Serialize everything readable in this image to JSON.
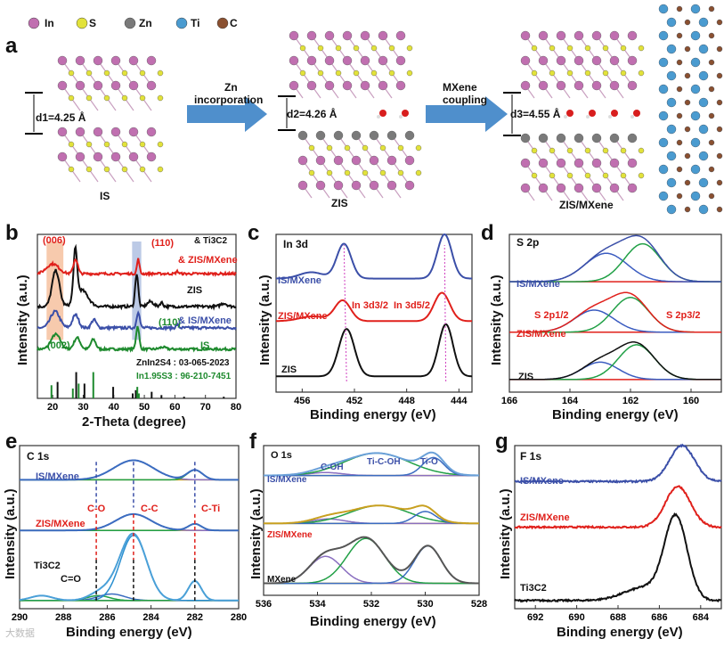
{
  "panel_letters": [
    "a",
    "b",
    "c",
    "d",
    "e",
    "f",
    "g"
  ],
  "diagram": {
    "legend": [
      "In",
      "S",
      "Zn",
      "Ti",
      "C"
    ],
    "legend_colors": [
      "#c06fb0",
      "#e2e23a",
      "#7a7a7a",
      "#4a9bd0",
      "#8a5030"
    ],
    "structures": [
      "IS",
      "ZIS",
      "ZIS/MXene"
    ],
    "arrow1_label": [
      "Zn",
      "incorporation"
    ],
    "arrow2_label": [
      "MXene",
      "coupling"
    ],
    "d1": "d1=4.25 Å",
    "d2": "d2=4.26 Å",
    "d3": "d3=4.55 Å"
  },
  "watermark": "大数据",
  "chart_data": [
    {
      "panel": "b",
      "type": "line",
      "xlabel": "2-Theta (degree)",
      "ylabel": "Intensity (a.u.)",
      "xlim": [
        15,
        80
      ],
      "ylim": [
        0,
        100
      ],
      "xticks": [
        20,
        30,
        40,
        50,
        60,
        70,
        80
      ],
      "shaded_ranges": [
        {
          "range": [
            18,
            23.5
          ],
          "color": "#f4b48a"
        },
        {
          "range": [
            46,
            49
          ],
          "color": "#9fb4dc"
        }
      ],
      "series": [
        {
          "name": "IS",
          "color": "#1e8a2e",
          "baseline": 30,
          "noise": 0.7,
          "peaks": [
            [
              21,
              9,
              1.5
            ],
            [
              28,
              7,
              1
            ],
            [
              33.3,
              6,
              0.8
            ],
            [
              47.8,
              14,
              0.5
            ],
            [
              56,
              1.2,
              1
            ]
          ]
        },
        {
          "name": "IS/MXene",
          "color": "#3b4fa8",
          "baseline": 43,
          "noise": 0.8,
          "peaks": [
            [
              20.8,
              10,
              1.5
            ],
            [
              27.5,
              8,
              1
            ],
            [
              33.5,
              5,
              0.8
            ],
            [
              48,
              10,
              0.5
            ],
            [
              60.8,
              2,
              0.4
            ]
          ]
        },
        {
          "name": "ZIS",
          "color": "#111111",
          "baseline": 56,
          "noise": 0.8,
          "peaks": [
            [
              21,
              22,
              1.2
            ],
            [
              27.4,
              30,
              0.6
            ],
            [
              29.5,
              10,
              2
            ],
            [
              47.5,
              20,
              0.5
            ],
            [
              52,
              3,
              1
            ],
            [
              55.6,
              2.5,
              0.5
            ],
            [
              76,
              2,
              1
            ]
          ]
        },
        {
          "name": "ZIS/MXene",
          "color": "#e0201b",
          "baseline": 76,
          "noise": 0.7,
          "peaks": [
            [
              20,
              6,
              2
            ],
            [
              27.5,
              9,
              0.7
            ],
            [
              48,
              9,
              0.4
            ],
            [
              60.8,
              1.5,
              0.4
            ]
          ]
        }
      ],
      "reference_bars": [
        {
          "name": "ZnIn2S4 : 03-065-2023",
          "color": "#111111",
          "positions": [
            21.6,
            27.7,
            30.4,
            39.8,
            46.2,
            47.2,
            52.4,
            55.6,
            63,
            76
          ],
          "heights": [
            10,
            16,
            9,
            7,
            3,
            5,
            4,
            2,
            1,
            1
          ]
        },
        {
          "name": "In1.95S3 : 96-210-7451",
          "color": "#1e8a2e",
          "positions": [
            19.6,
            26.6,
            28.5,
            33.3,
            47.7,
            48.2
          ],
          "heights": [
            8,
            6,
            9,
            16,
            7,
            3
          ]
        }
      ],
      "annotations": [
        "(006)",
        "(110)",
        "(110)",
        "(002)",
        "& Ti3C2",
        "& ZIS/MXene",
        "ZIS",
        "& IS/MXene",
        "IS"
      ]
    },
    {
      "panel": "c",
      "type": "line",
      "title": "In 3d",
      "xlabel": "Binding energy (eV)",
      "ylabel": "Intensity (a.u.)",
      "xlim": [
        458,
        443
      ],
      "ylim": [
        0,
        100
      ],
      "xticks": [
        456,
        452,
        448,
        444
      ],
      "series": [
        {
          "name": "ZIS",
          "color": "#111111",
          "baseline": 10,
          "peaks": [
            [
              452.6,
              30,
              0.6
            ],
            [
              445.0,
              33,
              0.55
            ]
          ]
        },
        {
          "name": "ZIS/MXene",
          "color": "#e0201b",
          "baseline": 45,
          "peaks": [
            [
              452.9,
              13,
              0.6
            ],
            [
              445.3,
              18,
              0.6
            ],
            [
              455.2,
              3,
              1.0
            ]
          ]
        },
        {
          "name": "IS/MXene",
          "color": "#3b4fa8",
          "baseline": 72,
          "peaks": [
            [
              452.8,
              22,
              0.55
            ],
            [
              445.1,
              28,
              0.55
            ],
            [
              455.3,
              4,
              0.9
            ]
          ]
        }
      ],
      "shift_lines": [
        [
          452.6,
          452.8
        ],
        [
          445.0,
          445.1
        ]
      ],
      "annotations": [
        "In 3d3/2",
        "In 3d5/2"
      ]
    },
    {
      "panel": "d",
      "type": "line",
      "title": "S 2p",
      "xlabel": "Binding energy (eV)",
      "ylabel": "Intensity (a.u.)",
      "xlim": [
        166,
        159
      ],
      "ylim": [
        0,
        100
      ],
      "xticks": [
        166,
        164,
        162,
        160
      ],
      "series": [
        {
          "name": "ZIS",
          "color": "#111111",
          "baseline": 8,
          "components": [
            [
              163.0,
              11,
              0.6
            ],
            [
              161.8,
              22,
              0.6
            ]
          ]
        },
        {
          "name": "ZIS/MXene",
          "color": "#e0201b",
          "baseline": 38,
          "components": [
            [
              163.2,
              14,
              0.65
            ],
            [
              162.0,
              22,
              0.6
            ]
          ]
        },
        {
          "name": "IS/MXene",
          "color": "#3b4fa8",
          "baseline": 70,
          "components": [
            [
              162.8,
              18,
              0.7
            ],
            [
              161.6,
              24,
              0.6
            ]
          ]
        }
      ],
      "component_colors": [
        "#3b5cc0",
        "#21a046"
      ],
      "annotations": [
        "S 2p1/2",
        "S 2p3/2"
      ]
    },
    {
      "panel": "e",
      "type": "line",
      "title": "C 1s",
      "xlabel": "Binding energy (eV)",
      "ylabel": "Intensity (a.u.)",
      "xlim": [
        290,
        280
      ],
      "ylim": [
        0,
        100
      ],
      "xticks": [
        290,
        288,
        286,
        284,
        282,
        280
      ],
      "series": [
        {
          "name": "Ti3C2",
          "color": "#4aa0d8",
          "baseline": 5,
          "components": [
            [
              289,
              3,
              0.5
            ],
            [
              286.4,
              3,
              0.5
            ],
            [
              285.8,
              4,
              0.6
            ],
            [
              284.8,
              40,
              0.6
            ],
            [
              282,
              12,
              0.3
            ]
          ]
        },
        {
          "name": "ZIS/MXene",
          "color": "#3b6cc0",
          "baseline": 48,
          "components": [
            [
              284.8,
              10,
              0.8
            ],
            [
              282,
              4,
              0.3
            ]
          ]
        },
        {
          "name": "IS/MXene",
          "color": "#3b6cc0",
          "baseline": 79,
          "components": [
            [
              284.8,
              12,
              0.9
            ],
            [
              282,
              6,
              0.35
            ]
          ]
        }
      ],
      "marker_lines": [
        286.5,
        284.8,
        282
      ],
      "annotations": [
        "C-O",
        "C-C",
        "C-Ti",
        "C=O"
      ]
    },
    {
      "panel": "f",
      "type": "line",
      "title": "O 1s",
      "xlabel": "Binding energy (eV)",
      "ylabel": "Intensity (a.u.)",
      "xlim": [
        536,
        528
      ],
      "ylim": [
        0,
        100
      ],
      "xticks": [
        536,
        534,
        532,
        530,
        528
      ],
      "series": [
        {
          "name": "MXene",
          "color": "#555555",
          "baseline": 8,
          "components": [
            [
              533.7,
              18,
              0.6
            ],
            [
              532.2,
              30,
              0.7
            ],
            [
              529.9,
              25,
              0.5
            ]
          ]
        },
        {
          "name": "ZIS/MXene",
          "color": "#c8a020",
          "baseline": 48,
          "components": [
            [
              533.6,
              3,
              0.6
            ],
            [
              531.7,
              12,
              1.1
            ],
            [
              530.0,
              8,
              0.4
            ]
          ]
        },
        {
          "name": "IS/MXene",
          "color": "#6aa0d8",
          "baseline": 80,
          "components": [
            [
              533.7,
              2,
              0.6
            ],
            [
              531.8,
              15,
              1.2
            ],
            [
              529.7,
              12,
              0.4
            ]
          ]
        }
      ],
      "annotations": [
        "C-OH",
        "Ti-C-OH",
        "Ti-O"
      ]
    },
    {
      "panel": "g",
      "type": "line",
      "title": "F 1s",
      "xlabel": "Binding energy (eV)",
      "ylabel": "Intensity (a.u.)",
      "xlim": [
        693,
        683
      ],
      "ylim": [
        0,
        100
      ],
      "xticks": [
        692,
        690,
        688,
        686,
        684
      ],
      "series": [
        {
          "name": "Ti3C2",
          "color": "#111111",
          "baseline": 5,
          "noise": 0.5,
          "peaks": [
            [
              685.2,
              50,
              0.55
            ],
            [
              686.7,
              8,
              1.0
            ]
          ]
        },
        {
          "name": "ZIS/MXene",
          "color": "#e0201b",
          "baseline": 50,
          "noise": 0.5,
          "peaks": [
            [
              685.1,
              25,
              0.6
            ]
          ]
        },
        {
          "name": "IS/MXene",
          "color": "#3b4fa8",
          "baseline": 78,
          "noise": 0.5,
          "peaks": [
            [
              684.9,
              22,
              0.6
            ]
          ]
        }
      ]
    }
  ]
}
